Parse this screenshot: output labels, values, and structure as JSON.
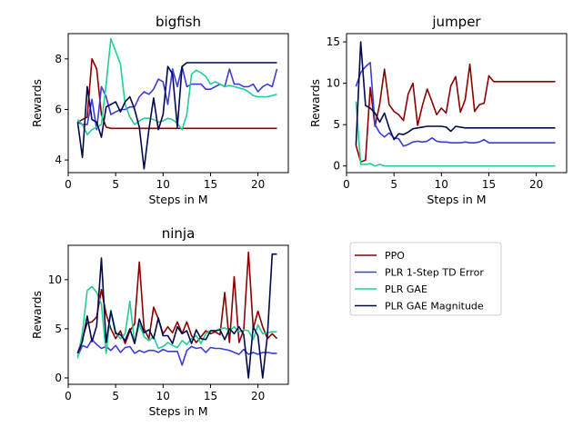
{
  "colors": {
    "PPO": "#8b0000",
    "PLR 1-Step TD Error": "#3c3cd8",
    "PLR GAE": "#20d090",
    "PLR GAE Magnitude": "#000a4a"
  },
  "legend": {
    "placement": "lower-right",
    "entries": [
      "PPO",
      "PLR 1-Step TD Error",
      "PLR GAE",
      "PLR GAE Magnitude"
    ]
  },
  "chart_data": [
    {
      "type": "line",
      "title": "bigfish",
      "xlabel": "Steps in M",
      "ylabel": "Rewards",
      "xlim": [
        0,
        23.2
      ],
      "ylim": [
        3.5,
        9.0
      ],
      "xticks": [
        0,
        5,
        10,
        15,
        20
      ],
      "yticks": [
        4,
        6,
        8
      ],
      "grid": false,
      "x": [
        1,
        1.5,
        2,
        2.5,
        3,
        3.5,
        4,
        4.5,
        5,
        5.5,
        6,
        6.5,
        7,
        7.5,
        8,
        8.5,
        9,
        9.5,
        10,
        10.5,
        11,
        11.5,
        12,
        12.5,
        13,
        13.5,
        14,
        14.5,
        15,
        15.5,
        16,
        16.5,
        17,
        17.5,
        18,
        18.5,
        19,
        19.5,
        20,
        20.5,
        21,
        21.5,
        22
      ],
      "series": [
        {
          "name": "PPO",
          "values": [
            5.5,
            5.6,
            5.7,
            8.0,
            7.6,
            5.8,
            5.3,
            5.25,
            5.25,
            5.25,
            5.25,
            5.25,
            5.25,
            5.25,
            5.25,
            5.25,
            5.25,
            5.25,
            5.25,
            5.25,
            5.25,
            5.25,
            5.25,
            5.25,
            5.25,
            5.25,
            5.25,
            5.25,
            5.25,
            5.25,
            5.25,
            5.25,
            5.25,
            5.25,
            5.25,
            5.25,
            5.25,
            5.25,
            5.25,
            5.25,
            5.25,
            5.25,
            5.25
          ]
        },
        {
          "name": "PLR 1-Step TD Error",
          "values": [
            5.5,
            5.4,
            5.4,
            6.4,
            5.2,
            6.9,
            6.5,
            5.8,
            5.9,
            6.0,
            6.0,
            6.1,
            6.1,
            6.5,
            6.7,
            6.6,
            6.8,
            7.2,
            7.1,
            6.2,
            7.6,
            6.9,
            7.7,
            6.9,
            7.0,
            7.0,
            7.0,
            6.8,
            6.8,
            6.9,
            7.0,
            6.9,
            7.6,
            7.0,
            7.0,
            6.9,
            6.9,
            7.0,
            6.7,
            6.9,
            7.0,
            6.9,
            7.6
          ]
        },
        {
          "name": "PLR GAE",
          "values": [
            5.6,
            5.4,
            5.0,
            5.2,
            5.3,
            5.4,
            7.0,
            8.8,
            8.3,
            7.8,
            6.2,
            5.7,
            5.4,
            5.55,
            5.65,
            5.65,
            5.6,
            5.5,
            5.55,
            5.65,
            5.6,
            5.45,
            5.2,
            5.8,
            7.4,
            7.55,
            7.45,
            7.3,
            7.0,
            7.1,
            7.0,
            6.9,
            6.95,
            6.9,
            6.85,
            6.8,
            6.7,
            6.55,
            6.5,
            6.5,
            6.5,
            6.55,
            6.6
          ]
        },
        {
          "name": "PLR GAE Magnitude",
          "values": [
            5.5,
            4.1,
            6.9,
            5.6,
            5.5,
            4.9,
            6.1,
            6.2,
            6.3,
            5.9,
            6.3,
            6.5,
            6.0,
            5.3,
            3.65,
            5.2,
            6.45,
            5.2,
            5.8,
            7.7,
            7.4,
            5.3,
            7.7,
            7.85,
            7.85,
            7.85,
            7.85,
            7.85,
            7.85,
            7.85,
            7.85,
            7.85,
            7.85,
            7.85,
            7.85,
            7.85,
            7.85,
            7.85,
            7.85,
            7.85,
            7.85,
            7.85,
            7.85
          ]
        }
      ]
    },
    {
      "type": "line",
      "title": "jumper",
      "xlabel": "Steps in M",
      "ylabel": "Rewards",
      "xlim": [
        0,
        23.2
      ],
      "ylim": [
        -0.8,
        16.0
      ],
      "xticks": [
        0,
        5,
        10,
        15,
        20
      ],
      "yticks": [
        0,
        5,
        10,
        15
      ],
      "grid": false,
      "x": [
        1,
        1.5,
        2,
        2.5,
        3,
        3.5,
        4,
        4.5,
        5,
        5.5,
        6,
        6.5,
        7,
        7.5,
        8,
        8.5,
        9,
        9.5,
        10,
        10.5,
        11,
        11.5,
        12,
        12.5,
        13,
        13.5,
        14,
        14.5,
        15,
        15.5,
        16,
        16.5,
        17,
        17.5,
        18,
        18.5,
        19,
        19.5,
        20,
        20.5,
        21,
        21.5,
        22
      ],
      "series": [
        {
          "name": "PPO",
          "values": [
            2.5,
            0.5,
            0.7,
            9.5,
            4.8,
            7.5,
            11.7,
            7.4,
            6.6,
            6.2,
            5.5,
            8.7,
            10.0,
            4.9,
            7.3,
            9.3,
            7.8,
            6.2,
            7.0,
            6.4,
            9.7,
            10.8,
            6.5,
            8.0,
            12.3,
            6.6,
            7.4,
            7.6,
            10.9,
            10.2,
            10.2,
            10.2,
            10.2,
            10.2,
            10.2,
            10.2,
            10.2,
            10.2,
            10.2,
            10.2,
            10.2,
            10.2,
            10.2
          ]
        },
        {
          "name": "PLR 1-Step TD Error",
          "values": [
            9.6,
            11.3,
            12.0,
            12.5,
            5.0,
            4.0,
            3.5,
            4.0,
            3.4,
            3.3,
            2.4,
            2.6,
            2.9,
            3.0,
            2.9,
            3.0,
            3.4,
            3.0,
            2.9,
            2.9,
            2.8,
            2.8,
            2.8,
            2.9,
            2.8,
            2.8,
            2.9,
            3.2,
            2.8,
            2.8,
            2.8,
            2.8,
            2.8,
            2.8,
            2.8,
            2.8,
            2.8,
            2.8,
            2.8,
            2.8,
            2.8,
            2.8,
            2.8
          ]
        },
        {
          "name": "PLR GAE",
          "values": [
            7.8,
            0.2,
            0.2,
            0.3,
            0.0,
            0.2,
            0.0,
            0.0,
            0.0,
            0.0,
            0.0,
            0.0,
            0.0,
            0.0,
            0.0,
            0.0,
            0.0,
            0.0,
            0.0,
            0.0,
            0.0,
            0.0,
            0.0,
            0.0,
            0.0,
            0.0,
            0.0,
            0.0,
            0.0,
            0.0,
            0.0,
            0.0,
            0.0,
            0.0,
            0.0,
            0.0,
            0.0,
            0.0,
            0.0,
            0.0,
            0.0,
            0.0,
            0.0
          ]
        },
        {
          "name": "PLR GAE Magnitude",
          "values": [
            2.5,
            15.0,
            7.3,
            7.0,
            6.4,
            5.3,
            6.4,
            4.6,
            3.2,
            3.9,
            3.8,
            4.1,
            4.5,
            4.6,
            4.7,
            4.8,
            4.8,
            4.8,
            4.8,
            4.7,
            4.2,
            4.8,
            4.7,
            4.6,
            4.6,
            4.6,
            4.6,
            4.6,
            4.6,
            4.6,
            4.6,
            4.6,
            4.6,
            4.6,
            4.6,
            4.6,
            4.6,
            4.6,
            4.6,
            4.6,
            4.6,
            4.6,
            4.6
          ]
        }
      ]
    },
    {
      "type": "line",
      "title": "ninja",
      "xlabel": "Steps in M",
      "ylabel": "Rewards",
      "xlim": [
        0,
        23.2
      ],
      "ylim": [
        -0.65,
        13.5
      ],
      "xticks": [
        0,
        5,
        10,
        15,
        20
      ],
      "yticks": [
        0,
        5,
        10
      ],
      "grid": false,
      "x": [
        1,
        1.5,
        2,
        2.5,
        3,
        3.5,
        4,
        4.5,
        5,
        5.5,
        6,
        6.5,
        7,
        7.5,
        8,
        8.5,
        9,
        9.5,
        10,
        10.5,
        11,
        11.5,
        12,
        12.5,
        13,
        13.5,
        14,
        14.5,
        15,
        15.5,
        16,
        16.5,
        17,
        17.5,
        18,
        18.5,
        19,
        19.5,
        20,
        20.5,
        21,
        21.5,
        22
      ],
      "series": [
        {
          "name": "PPO",
          "values": [
            2.5,
            4.0,
            5.6,
            5.7,
            6.2,
            9.0,
            6.5,
            5.0,
            4.0,
            4.8,
            3.5,
            4.8,
            5.5,
            11.8,
            5.0,
            4.0,
            7.2,
            6.0,
            4.5,
            5.2,
            4.6,
            5.7,
            4.5,
            5.7,
            4.3,
            3.6,
            4.2,
            4.8,
            4.5,
            4.7,
            4.4,
            8.7,
            3.6,
            10.3,
            3.6,
            4.9,
            12.8,
            5.0,
            6.8,
            5.2,
            4.0,
            4.5,
            4.0
          ]
        },
        {
          "name": "PLR 1-Step TD Error",
          "values": [
            2.2,
            3.3,
            3.1,
            3.9,
            3.4,
            3.0,
            3.2,
            2.8,
            3.3,
            2.6,
            3.1,
            3.2,
            2.5,
            2.8,
            2.6,
            2.8,
            2.8,
            2.6,
            2.9,
            2.7,
            2.7,
            2.7,
            1.3,
            2.8,
            3.2,
            3.0,
            3.1,
            2.6,
            3.1,
            3.0,
            3.0,
            2.9,
            2.8,
            2.6,
            2.4,
            2.9,
            2.4,
            2.6,
            2.4,
            2.6,
            2.6,
            2.5,
            2.5
          ]
        },
        {
          "name": "PLR GAE",
          "values": [
            2.0,
            4.6,
            8.9,
            9.3,
            8.7,
            7.5,
            2.5,
            6.9,
            4.7,
            4.0,
            4.5,
            7.8,
            3.5,
            5.5,
            4.2,
            3.8,
            4.2,
            3.0,
            3.2,
            3.6,
            3.3,
            3.1,
            3.8,
            3.4,
            4.0,
            4.3,
            3.5,
            4.5,
            4.8,
            4.8,
            5.0,
            5.1,
            4.8,
            5.2,
            4.7,
            4.9,
            4.8,
            3.9,
            5.4,
            4.5,
            4.6,
            4.7,
            4.7
          ]
        },
        {
          "name": "PLR GAE Magnitude",
          "values": [
            2.5,
            3.7,
            6.3,
            3.7,
            5.3,
            12.2,
            3.6,
            6.8,
            4.5,
            4.4,
            3.8,
            5.0,
            3.5,
            6.0,
            4.6,
            4.9,
            4.0,
            6.1,
            4.3,
            4.3,
            3.5,
            5.2,
            4.5,
            4.8,
            3.5,
            4.9,
            4.0,
            3.9,
            4.8,
            4.8,
            4.9,
            3.9,
            5.0,
            4.5,
            5.2,
            4.4,
            0.0,
            5.2,
            4.3,
            0.0,
            4.4,
            12.6,
            12.6
          ]
        }
      ]
    }
  ]
}
